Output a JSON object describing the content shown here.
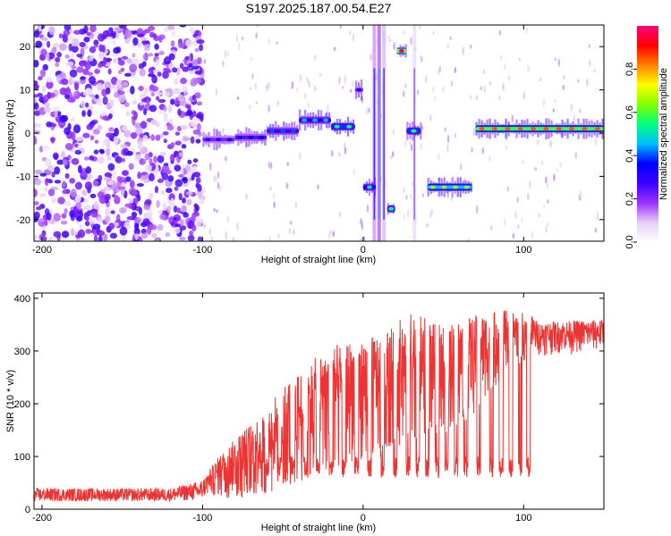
{
  "chart_data": [
    {
      "type": "heatmap",
      "title": "S197.2025.187.00.54.E27",
      "xlabel": "Height of straight line (km)",
      "ylabel": "Frequency (Hz)",
      "xlim": [
        -205,
        150
      ],
      "ylim": [
        -25,
        25
      ],
      "x_ticks": [
        -200,
        -100,
        0,
        100
      ],
      "y_ticks": [
        20,
        10,
        0,
        -10,
        -20
      ],
      "colorbar": {
        "label": "Normalized spectral amplitude",
        "ticks": [
          0.0,
          0.2,
          0.4,
          0.6,
          0.8
        ],
        "range": [
          0,
          1
        ],
        "colormap": [
          "#ffffff",
          "#e6d0f5",
          "#9b30ff",
          "#3a00ff",
          "#0000ff",
          "#00bfff",
          "#00ff80",
          "#80ff00",
          "#ffff00",
          "#ff8000",
          "#ff0000",
          "#ff0080"
        ]
      },
      "noise_region": {
        "x": [
          -205,
          -100
        ],
        "amplitude": 0.15
      },
      "features": [
        {
          "x_start": -100,
          "x_end": -80,
          "freq_hz": -1.5,
          "amplitude": 0.3
        },
        {
          "x_start": -80,
          "x_end": -60,
          "freq_hz": -1,
          "amplitude": 0.35
        },
        {
          "x_start": -60,
          "x_end": -40,
          "freq_hz": 0.5,
          "amplitude": 0.4
        },
        {
          "x_start": -40,
          "x_end": -20,
          "freq_hz": 3,
          "amplitude": 0.45
        },
        {
          "x_start": -20,
          "x_end": -5,
          "freq_hz": 1.5,
          "amplitude": 0.55
        },
        {
          "x_start": -5,
          "x_end": 0,
          "freq_hz": 10,
          "amplitude": 0.3
        },
        {
          "x_start": 0,
          "x_end": 8,
          "freq_hz": -12.5,
          "amplitude": 0.5
        },
        {
          "x_start": 15,
          "x_end": 20,
          "freq_hz": -17.5,
          "amplitude": 0.55
        },
        {
          "x_start": 21,
          "x_end": 27,
          "freq_hz": 19,
          "amplitude": 0.95
        },
        {
          "x_start": 27,
          "x_end": 36,
          "freq_hz": 0.5,
          "amplitude": 0.55
        },
        {
          "x_start": 40,
          "x_end": 68,
          "freq_hz": -12.5,
          "amplitude": 0.65
        },
        {
          "x_start": 70,
          "x_end": 150,
          "freq_hz": 1,
          "amplitude": 0.85
        }
      ],
      "vertical_streaks": [
        {
          "x": 7,
          "amplitude": 0.35
        },
        {
          "x": 10,
          "amplitude": 0.45
        },
        {
          "x": 13,
          "amplitude": 0.3
        },
        {
          "x": 32,
          "amplitude": 0.2
        }
      ]
    },
    {
      "type": "line",
      "xlabel": "Height of straight line (km)",
      "ylabel": "SNR (10 * v/v)",
      "xlim": [
        -205,
        150
      ],
      "ylim": [
        0,
        410
      ],
      "x_ticks": [
        -200,
        -100,
        0,
        100
      ],
      "y_ticks": [
        0,
        100,
        200,
        300,
        400
      ],
      "color": "#ee3333",
      "envelope": [
        {
          "x": -205,
          "base": 15,
          "peak": 40
        },
        {
          "x": -120,
          "base": 15,
          "peak": 40
        },
        {
          "x": -100,
          "base": 18,
          "peak": 55
        },
        {
          "x": -90,
          "base": 20,
          "peak": 100
        },
        {
          "x": -75,
          "base": 20,
          "peak": 150
        },
        {
          "x": -60,
          "base": 30,
          "peak": 190
        },
        {
          "x": -50,
          "base": 40,
          "peak": 240
        },
        {
          "x": -40,
          "base": 50,
          "peak": 260
        },
        {
          "x": -25,
          "base": 70,
          "peak": 300
        },
        {
          "x": -10,
          "base": 80,
          "peak": 320
        },
        {
          "x": 0,
          "base": 95,
          "peak": 320
        },
        {
          "x": 15,
          "base": 110,
          "peak": 340
        },
        {
          "x": 30,
          "base": 130,
          "peak": 380
        },
        {
          "x": 45,
          "base": 140,
          "peak": 350
        },
        {
          "x": 60,
          "base": 150,
          "peak": 360
        },
        {
          "x": 75,
          "base": 200,
          "peak": 370
        },
        {
          "x": 90,
          "base": 260,
          "peak": 380
        },
        {
          "x": 104,
          "base": 280,
          "peak": 370
        },
        {
          "x": 110,
          "base": 290,
          "peak": 355
        },
        {
          "x": 150,
          "base": 295,
          "peak": 360
        }
      ],
      "deep_dips": [
        -60,
        -52,
        -44,
        -36,
        -28,
        -20,
        -12,
        -4,
        4,
        12,
        20,
        28,
        34,
        40,
        46,
        52,
        58,
        64,
        72,
        80,
        86,
        92,
        98,
        103
      ],
      "dip_level": 60
    }
  ]
}
